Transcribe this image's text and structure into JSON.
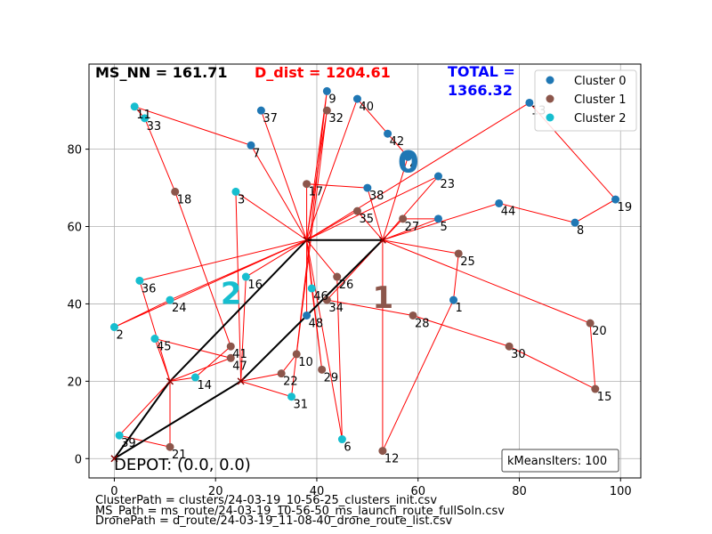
{
  "chart_data": {
    "type": "scatter",
    "annotations": {
      "ms_nn": "MS_NN = 161.71",
      "d_dist": "D_dist = 1204.61",
      "total_line1": "TOTAL =",
      "total_line2": "1366.32",
      "depot": "DEPOT: (0.0, 0.0)",
      "kmeans": "kMeansIters: 100",
      "cluster_label_0": "0",
      "cluster_label_1": "1",
      "cluster_label_2": "2"
    },
    "xlim": [
      -5,
      104
    ],
    "ylim": [
      -5,
      102
    ],
    "x_ticks": [
      0,
      20,
      40,
      60,
      80,
      100
    ],
    "y_ticks": [
      0,
      20,
      40,
      60,
      80
    ],
    "grid": true,
    "legend_placement": "top-right",
    "colors": {
      "cluster0": "#1f77b4",
      "cluster1": "#8c564b",
      "cluster2": "#17becf",
      "route": "#ff0000",
      "ms_route": "#000000"
    },
    "series": [
      {
        "name": "Cluster 0",
        "color": "#1f77b4",
        "points": [
          {
            "id": "1",
            "x": 67,
            "y": 41
          },
          {
            "id": "4",
            "x": 58,
            "y": 78
          },
          {
            "id": "5",
            "x": 64,
            "y": 62
          },
          {
            "id": "7",
            "x": 27,
            "y": 81
          },
          {
            "id": "8",
            "x": 91,
            "y": 61
          },
          {
            "id": "9",
            "x": 42,
            "y": 95
          },
          {
            "id": "13",
            "x": 82,
            "y": 92
          },
          {
            "id": "19",
            "x": 99,
            "y": 67
          },
          {
            "id": "23",
            "x": 64,
            "y": 73
          },
          {
            "id": "37",
            "x": 29,
            "y": 90
          },
          {
            "id": "38",
            "x": 50,
            "y": 70
          },
          {
            "id": "40",
            "x": 48,
            "y": 93
          },
          {
            "id": "42",
            "x": 54,
            "y": 84
          },
          {
            "id": "44",
            "x": 76,
            "y": 66
          },
          {
            "id": "48",
            "x": 38,
            "y": 37
          }
        ]
      },
      {
        "name": "Cluster 1",
        "color": "#8c564b",
        "points": [
          {
            "id": "10",
            "x": 36,
            "y": 27
          },
          {
            "id": "12",
            "x": 53,
            "y": 2
          },
          {
            "id": "15",
            "x": 95,
            "y": 18
          },
          {
            "id": "17",
            "x": 38,
            "y": 71
          },
          {
            "id": "18",
            "x": 12,
            "y": 69
          },
          {
            "id": "20",
            "x": 94,
            "y": 35
          },
          {
            "id": "21",
            "x": 11,
            "y": 3
          },
          {
            "id": "22",
            "x": 33,
            "y": 22
          },
          {
            "id": "25",
            "x": 68,
            "y": 53
          },
          {
            "id": "26",
            "x": 44,
            "y": 47
          },
          {
            "id": "27",
            "x": 57,
            "y": 62
          },
          {
            "id": "28",
            "x": 59,
            "y": 37
          },
          {
            "id": "29",
            "x": 41,
            "y": 23
          },
          {
            "id": "30",
            "x": 78,
            "y": 29
          },
          {
            "id": "32",
            "x": 42,
            "y": 90
          },
          {
            "id": "34",
            "x": 42,
            "y": 41
          },
          {
            "id": "35",
            "x": 48,
            "y": 64
          },
          {
            "id": "41",
            "x": 23,
            "y": 29
          },
          {
            "id": "47",
            "x": 23,
            "y": 26
          }
        ]
      },
      {
        "name": "Cluster 2",
        "color": "#17becf",
        "points": [
          {
            "id": "2",
            "x": 0,
            "y": 34
          },
          {
            "id": "3",
            "x": 24,
            "y": 69
          },
          {
            "id": "6",
            "x": 45,
            "y": 5
          },
          {
            "id": "11",
            "x": 4,
            "y": 91
          },
          {
            "id": "14",
            "x": 16,
            "y": 21
          },
          {
            "id": "16",
            "x": 26,
            "y": 47
          },
          {
            "id": "24",
            "x": 11,
            "y": 41
          },
          {
            "id": "31",
            "x": 35,
            "y": 16
          },
          {
            "id": "33",
            "x": 6,
            "y": 88
          },
          {
            "id": "36",
            "x": 5,
            "y": 46
          },
          {
            "id": "39",
            "x": 1,
            "y": 6
          },
          {
            "id": "45",
            "x": 8,
            "y": 31
          },
          {
            "id": "46",
            "x": 39,
            "y": 44
          }
        ]
      }
    ],
    "launch_points": [
      {
        "x": 0,
        "y": 0
      },
      {
        "x": 11,
        "y": 20
      },
      {
        "x": 25,
        "y": 20
      },
      {
        "x": 38,
        "y": 56.5
      },
      {
        "x": 53,
        "y": 56.5
      }
    ],
    "ms_route": [
      [
        0,
        0
      ],
      [
        11,
        20
      ],
      [
        38,
        56.5
      ],
      [
        53,
        56.5
      ],
      [
        25,
        20
      ],
      [
        0,
        0
      ]
    ],
    "drone_routes": [
      [
        [
          11,
          20
        ],
        [
          1,
          6
        ],
        [
          11,
          3
        ],
        [
          11,
          20
        ]
      ],
      [
        [
          11,
          20
        ],
        [
          8,
          31
        ],
        [
          23,
          26
        ],
        [
          11,
          20
        ]
      ],
      [
        [
          11,
          20
        ],
        [
          5,
          46
        ],
        [
          38,
          56.5
        ]
      ],
      [
        [
          38,
          56.5
        ],
        [
          11,
          20
        ]
      ],
      [
        [
          11,
          20
        ],
        [
          16,
          21
        ],
        [
          23,
          29
        ],
        [
          12,
          69
        ],
        [
          6,
          88
        ],
        [
          4,
          91
        ],
        [
          27,
          81
        ],
        [
          38,
          56.5
        ]
      ],
      [
        [
          38,
          56.5
        ],
        [
          0,
          34
        ],
        [
          11,
          41
        ],
        [
          38,
          56.5
        ]
      ],
      [
        [
          38,
          56.5
        ],
        [
          24,
          69
        ],
        [
          25,
          20
        ]
      ],
      [
        [
          38,
          56.5
        ],
        [
          26,
          47
        ],
        [
          25,
          20
        ]
      ],
      [
        [
          38,
          56.5
        ],
        [
          29,
          90
        ],
        [
          38,
          56.5
        ]
      ],
      [
        [
          38,
          56.5
        ],
        [
          42,
          95
        ],
        [
          35,
          16
        ],
        [
          25,
          20
        ]
      ],
      [
        [
          38,
          56.5
        ],
        [
          38,
          71
        ],
        [
          50,
          70
        ],
        [
          53,
          56.5
        ]
      ],
      [
        [
          38,
          56.5
        ],
        [
          42,
          90
        ],
        [
          36,
          27
        ],
        [
          33,
          22
        ],
        [
          25,
          20
        ]
      ],
      [
        [
          38,
          56.5
        ],
        [
          39,
          44
        ],
        [
          41,
          23
        ],
        [
          38,
          56.5
        ]
      ],
      [
        [
          38,
          56.5
        ],
        [
          48,
          64
        ],
        [
          53,
          56.5
        ]
      ],
      [
        [
          38,
          56.5
        ],
        [
          48,
          93
        ],
        [
          54,
          84
        ],
        [
          58,
          78
        ],
        [
          53,
          56.5
        ]
      ],
      [
        [
          38,
          56.5
        ],
        [
          64,
          73
        ],
        [
          53,
          56.5
        ]
      ],
      [
        [
          38,
          56.5
        ],
        [
          82,
          92
        ],
        [
          99,
          67
        ],
        [
          91,
          61
        ],
        [
          76,
          66
        ],
        [
          53,
          56.5
        ]
      ],
      [
        [
          38,
          56.5
        ],
        [
          44,
          47
        ],
        [
          45,
          5
        ],
        [
          38,
          56.5
        ]
      ],
      [
        [
          38,
          56.5
        ],
        [
          38,
          37
        ],
        [
          53,
          56.5
        ]
      ],
      [
        [
          53,
          56.5
        ],
        [
          57,
          62
        ],
        [
          64,
          62
        ],
        [
          53,
          56.5
        ]
      ],
      [
        [
          53,
          56.5
        ],
        [
          68,
          53
        ],
        [
          67,
          41
        ],
        [
          53,
          2
        ],
        [
          53,
          56.5
        ]
      ],
      [
        [
          53,
          56.5
        ],
        [
          42,
          41
        ],
        [
          59,
          37
        ],
        [
          78,
          29
        ],
        [
          95,
          18
        ],
        [
          94,
          35
        ],
        [
          53,
          56.5
        ]
      ]
    ],
    "cluster_label_positions": [
      {
        "label": "0",
        "x": 56,
        "y": 74,
        "color": "#1f77b4"
      },
      {
        "label": "1",
        "x": 51,
        "y": 39,
        "color": "#8c564b"
      },
      {
        "label": "2",
        "x": 21,
        "y": 40,
        "color": "#17becf"
      }
    ]
  },
  "footer": {
    "cluster_path": "ClusterPath = clusters/24-03-19_10-56-25_clusters_init.csv",
    "ms_path": "MS_Path = ms_route/24-03-19_10-56-50_ms_launch_route_fullSoln.csv",
    "drone_path": "DronePath = d_route/24-03-19_11-08-40_drone_route_list.csv"
  }
}
